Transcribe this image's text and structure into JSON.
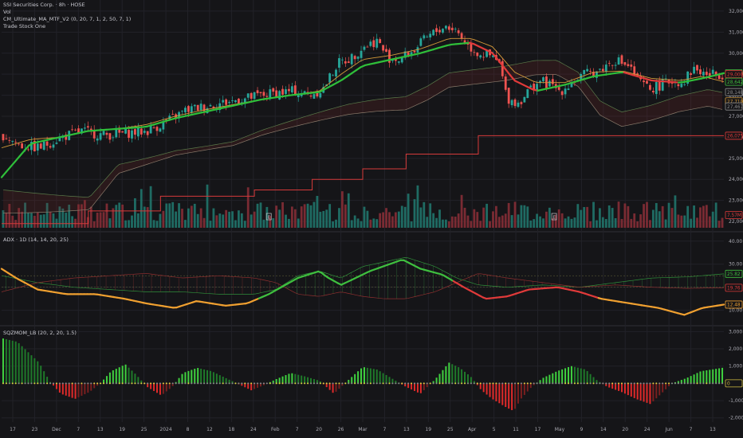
{
  "chart_data": [
    {
      "type": "candlestick",
      "title": "SSI Securities Corp. · 8h · HOSE",
      "indicators": [
        "Vol",
        "CM_Ultimate_MA_MTF_V2 (0, 20, 7, 1, 2, 50, 7, 1)",
        "Trade Stock One"
      ],
      "x_ticks": [
        "17",
        "23",
        "Dec",
        "7",
        "13",
        "19",
        "25",
        "2024",
        "8",
        "12",
        "18",
        "24",
        "Feb",
        "7",
        "20",
        "26",
        "Mar",
        "7",
        "13",
        "19",
        "25",
        "Apr",
        "5",
        "11",
        "17",
        "May",
        "9",
        "14",
        "20",
        "24",
        "Jun",
        "7",
        "13"
      ],
      "y_ticks": [
        32000,
        31000,
        30000,
        29000,
        28000,
        27000,
        26000,
        25000,
        24000,
        23000,
        22000
      ],
      "ylim": [
        21700,
        32300
      ],
      "price_labels": [
        {
          "value": 29049,
          "text": "29,049",
          "color": "#3fbf3f"
        },
        {
          "value": 29000,
          "text": "29,000",
          "color": "#e03a3a"
        },
        {
          "value": 28642,
          "text": "28,642",
          "color": "#3fbf3f"
        },
        {
          "value": 28148,
          "text": "28,148",
          "color": "#8a8a8a"
        },
        {
          "value": 27710,
          "text": "27,710",
          "color": "#d49a3a"
        },
        {
          "value": 27467,
          "text": "27,467",
          "color": "#8a8a8a"
        },
        {
          "value": 26075,
          "text": "26,075",
          "color": "#e03a3a"
        }
      ],
      "volume_label": "7.57M",
      "close_key": [
        [
          0,
          26100
        ],
        [
          0.025,
          25600
        ],
        [
          0.05,
          25500
        ],
        [
          0.08,
          26000
        ],
        [
          0.11,
          26300
        ],
        [
          0.14,
          26100
        ],
        [
          0.17,
          26200
        ],
        [
          0.2,
          26300
        ],
        [
          0.225,
          26700
        ],
        [
          0.255,
          27300
        ],
        [
          0.285,
          27500
        ],
        [
          0.315,
          27700
        ],
        [
          0.345,
          27900
        ],
        [
          0.375,
          28100
        ],
        [
          0.405,
          28200
        ],
        [
          0.425,
          28000
        ],
        [
          0.445,
          28300
        ],
        [
          0.465,
          29500
        ],
        [
          0.485,
          29800
        ],
        [
          0.5,
          30300
        ],
        [
          0.52,
          30600
        ],
        [
          0.535,
          29800
        ],
        [
          0.55,
          29700
        ],
        [
          0.57,
          30100
        ],
        [
          0.585,
          30600
        ],
        [
          0.6,
          31000
        ],
        [
          0.615,
          31300
        ],
        [
          0.63,
          31100
        ],
        [
          0.645,
          30400
        ],
        [
          0.66,
          30000
        ],
        [
          0.675,
          29900
        ],
        [
          0.69,
          29500
        ],
        [
          0.7,
          27900
        ],
        [
          0.715,
          27600
        ],
        [
          0.73,
          28200
        ],
        [
          0.745,
          28700
        ],
        [
          0.76,
          28500
        ],
        [
          0.775,
          28200
        ],
        [
          0.79,
          28600
        ],
        [
          0.81,
          29000
        ],
        [
          0.83,
          29200
        ],
        [
          0.85,
          29700
        ],
        [
          0.87,
          29400
        ],
        [
          0.885,
          28600
        ],
        [
          0.9,
          28300
        ],
        [
          0.915,
          28500
        ],
        [
          0.93,
          28700
        ],
        [
          0.945,
          28600
        ],
        [
          0.96,
          29300
        ],
        [
          0.975,
          29000
        ],
        [
          1,
          29000
        ]
      ],
      "ma20_key": [
        [
          0,
          24100
        ],
        [
          0.04,
          25700
        ],
        [
          0.08,
          26000
        ],
        [
          0.12,
          26300
        ],
        [
          0.16,
          26400
        ],
        [
          0.2,
          26500
        ],
        [
          0.24,
          26900
        ],
        [
          0.28,
          27200
        ],
        [
          0.32,
          27500
        ],
        [
          0.36,
          27800
        ],
        [
          0.4,
          28000
        ],
        [
          0.44,
          28150
        ],
        [
          0.47,
          28700
        ],
        [
          0.5,
          29400
        ],
        [
          0.54,
          29700
        ],
        [
          0.58,
          30000
        ],
        [
          0.62,
          30400
        ],
        [
          0.65,
          30500
        ],
        [
          0.68,
          30000
        ],
        [
          0.71,
          28700
        ],
        [
          0.74,
          28200
        ],
        [
          0.78,
          28500
        ],
        [
          0.82,
          28900
        ],
        [
          0.86,
          29100
        ],
        [
          0.9,
          28700
        ],
        [
          0.94,
          28600
        ],
        [
          0.97,
          28800
        ],
        [
          1,
          29049
        ]
      ],
      "ema_key": [
        [
          0,
          25500
        ],
        [
          0.04,
          25900
        ],
        [
          0.08,
          26000
        ],
        [
          0.12,
          26300
        ],
        [
          0.16,
          26400
        ],
        [
          0.2,
          26600
        ],
        [
          0.24,
          27000
        ],
        [
          0.28,
          27300
        ],
        [
          0.32,
          27550
        ],
        [
          0.36,
          27800
        ],
        [
          0.4,
          28000
        ],
        [
          0.44,
          28200
        ],
        [
          0.47,
          29000
        ],
        [
          0.5,
          29700
        ],
        [
          0.54,
          29900
        ],
        [
          0.58,
          30200
        ],
        [
          0.62,
          30700
        ],
        [
          0.65,
          30700
        ],
        [
          0.68,
          30300
        ],
        [
          0.71,
          29100
        ],
        [
          0.74,
          28600
        ],
        [
          0.78,
          28600
        ],
        [
          0.82,
          29100
        ],
        [
          0.86,
          29150
        ],
        [
          0.9,
          28800
        ],
        [
          0.94,
          28700
        ],
        [
          0.97,
          28900
        ],
        [
          1,
          28642
        ]
      ]
    },
    {
      "type": "line",
      "title": "ADX · 1D (14, 14, 20, 25)",
      "y_ticks": [
        40,
        30,
        20,
        10
      ],
      "ylim": [
        4,
        42
      ],
      "labels": [
        {
          "value": 25.82,
          "text": "25.82",
          "color": "#3fbf3f"
        },
        {
          "value": 19.76,
          "text": "19.76",
          "color": "#e03a3a"
        },
        {
          "value": 12.48,
          "text": "12.48",
          "color": "#f0a030"
        }
      ],
      "dip_key": [
        [
          0,
          25
        ],
        [
          0.05,
          22
        ],
        [
          0.1,
          20
        ],
        [
          0.15,
          19
        ],
        [
          0.2,
          18
        ],
        [
          0.25,
          18
        ],
        [
          0.3,
          17
        ],
        [
          0.35,
          17
        ],
        [
          0.38,
          19
        ],
        [
          0.41,
          25
        ],
        [
          0.44,
          27
        ],
        [
          0.47,
          24
        ],
        [
          0.5,
          29
        ],
        [
          0.53,
          31
        ],
        [
          0.56,
          33
        ],
        [
          0.6,
          29
        ],
        [
          0.63,
          24
        ],
        [
          0.66,
          21
        ],
        [
          0.7,
          20
        ],
        [
          0.75,
          21
        ],
        [
          0.8,
          20
        ],
        [
          0.85,
          22
        ],
        [
          0.9,
          24
        ],
        [
          0.95,
          24.5
        ],
        [
          1,
          25.8
        ]
      ],
      "dim_key": [
        [
          0,
          18
        ],
        [
          0.05,
          22
        ],
        [
          0.1,
          24
        ],
        [
          0.15,
          25
        ],
        [
          0.2,
          26
        ],
        [
          0.25,
          24
        ],
        [
          0.3,
          25
        ],
        [
          0.35,
          24
        ],
        [
          0.38,
          22
        ],
        [
          0.41,
          17
        ],
        [
          0.44,
          16
        ],
        [
          0.47,
          18
        ],
        [
          0.5,
          16
        ],
        [
          0.53,
          15
        ],
        [
          0.56,
          15
        ],
        [
          0.6,
          18
        ],
        [
          0.63,
          22
        ],
        [
          0.66,
          26
        ],
        [
          0.7,
          24
        ],
        [
          0.75,
          22
        ],
        [
          0.8,
          20
        ],
        [
          0.85,
          21
        ],
        [
          0.9,
          20
        ],
        [
          0.95,
          19.5
        ],
        [
          1,
          19.8
        ]
      ],
      "adx_key": [
        [
          0,
          28
        ],
        [
          0.02,
          24
        ],
        [
          0.05,
          19
        ],
        [
          0.09,
          17
        ],
        [
          0.13,
          17
        ],
        [
          0.17,
          15
        ],
        [
          0.2,
          13
        ],
        [
          0.24,
          11
        ],
        [
          0.27,
          14
        ],
        [
          0.31,
          12
        ],
        [
          0.34,
          13
        ],
        [
          0.37,
          17
        ],
        [
          0.41,
          24
        ],
        [
          0.44,
          27
        ],
        [
          0.45,
          24.5
        ],
        [
          0.47,
          21
        ],
        [
          0.51,
          27
        ],
        [
          0.555,
          32
        ],
        [
          0.58,
          28
        ],
        [
          0.61,
          25.5
        ],
        [
          0.64,
          20
        ],
        [
          0.67,
          15
        ],
        [
          0.7,
          16
        ],
        [
          0.73,
          19
        ],
        [
          0.77,
          20
        ],
        [
          0.8,
          18
        ],
        [
          0.83,
          15
        ],
        [
          0.87,
          13
        ],
        [
          0.91,
          11
        ],
        [
          0.945,
          8
        ],
        [
          0.97,
          11
        ],
        [
          1,
          12.48
        ]
      ],
      "adx_colors": [
        [
          0.36,
          "#f0a030"
        ],
        [
          0.63,
          "#3fbf3f"
        ],
        [
          0.83,
          "#e03a3a"
        ],
        [
          1,
          "#f0a030"
        ]
      ]
    },
    {
      "type": "bar",
      "title": "SQZMOM_LB (20, 2, 20, 1.5)",
      "y_ticks": [
        3000,
        2000,
        1000,
        0,
        -1000,
        -2000
      ],
      "ylim": [
        -2150,
        3200
      ],
      "zero_label": "0",
      "momentum_key": [
        [
          0,
          2600
        ],
        [
          0.02,
          2400
        ],
        [
          0.05,
          1200
        ],
        [
          0.065,
          100
        ],
        [
          0.08,
          -600
        ],
        [
          0.1,
          -900
        ],
        [
          0.12,
          -500
        ],
        [
          0.135,
          0
        ],
        [
          0.15,
          700
        ],
        [
          0.17,
          1100
        ],
        [
          0.185,
          500
        ],
        [
          0.2,
          -200
        ],
        [
          0.22,
          -700
        ],
        [
          0.235,
          -200
        ],
        [
          0.25,
          600
        ],
        [
          0.27,
          900
        ],
        [
          0.29,
          700
        ],
        [
          0.31,
          300
        ],
        [
          0.33,
          -100
        ],
        [
          0.345,
          -400
        ],
        [
          0.36,
          -150
        ],
        [
          0.38,
          250
        ],
        [
          0.4,
          600
        ],
        [
          0.42,
          400
        ],
        [
          0.44,
          150
        ],
        [
          0.46,
          -600
        ],
        [
          0.475,
          0
        ],
        [
          0.5,
          950
        ],
        [
          0.52,
          800
        ],
        [
          0.54,
          300
        ],
        [
          0.56,
          -200
        ],
        [
          0.58,
          -600
        ],
        [
          0.6,
          200
        ],
        [
          0.62,
          1200
        ],
        [
          0.635,
          900
        ],
        [
          0.65,
          400
        ],
        [
          0.665,
          -400
        ],
        [
          0.68,
          -900
        ],
        [
          0.7,
          -1400
        ],
        [
          0.71,
          -1600
        ],
        [
          0.72,
          -900
        ],
        [
          0.735,
          -200
        ],
        [
          0.75,
          300
        ],
        [
          0.77,
          700
        ],
        [
          0.79,
          1000
        ],
        [
          0.81,
          800
        ],
        [
          0.825,
          200
        ],
        [
          0.84,
          -200
        ],
        [
          0.86,
          -500
        ],
        [
          0.88,
          -900
        ],
        [
          0.9,
          -1200
        ],
        [
          0.915,
          -600
        ],
        [
          0.93,
          0
        ],
        [
          0.95,
          300
        ],
        [
          0.97,
          700
        ],
        [
          1,
          900
        ]
      ]
    }
  ]
}
